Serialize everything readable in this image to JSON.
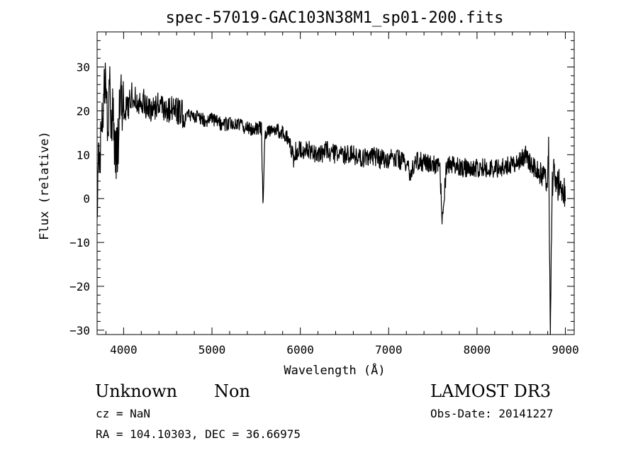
{
  "chart_data": {
    "type": "line",
    "title": "spec-57019-GAC103N38M1_sp01-200.fits",
    "xlabel": "Wavelength (Å)",
    "ylabel": "Flux (relative)",
    "xlim": [
      3700,
      9100
    ],
    "ylim": [
      -31,
      38
    ],
    "x_ticks": [
      4000,
      5000,
      6000,
      7000,
      8000,
      9000
    ],
    "y_ticks": [
      -30,
      -20,
      -10,
      0,
      10,
      20,
      30
    ],
    "x_tick_labels": [
      "4000",
      "5000",
      "6000",
      "7000",
      "8000",
      "9000"
    ],
    "y_tick_labels": [
      "−30",
      "−20",
      "−10",
      "0",
      "10",
      "20",
      "30"
    ],
    "series": [
      {
        "name": "flux",
        "color": "#000000",
        "x": [
          3700,
          3720,
          3740,
          3760,
          3780,
          3800,
          3820,
          3840,
          3860,
          3880,
          3900,
          3930,
          3960,
          4000,
          4050,
          4100,
          4150,
          4200,
          4250,
          4300,
          4350,
          4400,
          4450,
          4500,
          4550,
          4600,
          4700,
          4800,
          4900,
          5000,
          5100,
          5200,
          5300,
          5400,
          5500,
          5560,
          5577,
          5600,
          5700,
          5800,
          5850,
          5890,
          5920,
          5950,
          6000,
          6100,
          6200,
          6300,
          6400,
          6500,
          6600,
          6700,
          6800,
          6900,
          7000,
          7100,
          7200,
          7250,
          7300,
          7400,
          7500,
          7580,
          7605,
          7650,
          7700,
          7800,
          7900,
          8000,
          8100,
          8200,
          8300,
          8400,
          8500,
          8550,
          8600,
          8700,
          8750,
          8800,
          8810,
          8830,
          8850,
          8870,
          8900,
          8930,
          8960,
          8990,
          9000
        ],
        "y": [
          2,
          8,
          12,
          18,
          30,
          24,
          15,
          26,
          16,
          20,
          12,
          10,
          22,
          20,
          21,
          24,
          22,
          23,
          21,
          20,
          21,
          22,
          21,
          20,
          21,
          20,
          19,
          19,
          18,
          18,
          17,
          17,
          17,
          16,
          16,
          16,
          -1,
          15,
          16,
          15,
          14,
          12,
          9,
          11,
          11,
          11,
          10,
          11,
          10,
          10,
          10,
          9,
          10,
          9,
          9,
          9,
          8,
          5,
          9,
          8,
          8,
          7,
          -5,
          6,
          8,
          7,
          7,
          7,
          7,
          7,
          7,
          8,
          9,
          10,
          8,
          6,
          4,
          5,
          14,
          -31,
          3,
          6,
          2,
          4,
          1,
          2,
          0
        ]
      }
    ]
  },
  "info": {
    "object_class": "Unknown",
    "object_subclass": "Non",
    "survey": "LAMOST DR3",
    "cz": "cz = NaN",
    "obs_date": "Obs-Date: 20141227",
    "coords": "RA = 104.10303, DEC =  36.66975"
  }
}
